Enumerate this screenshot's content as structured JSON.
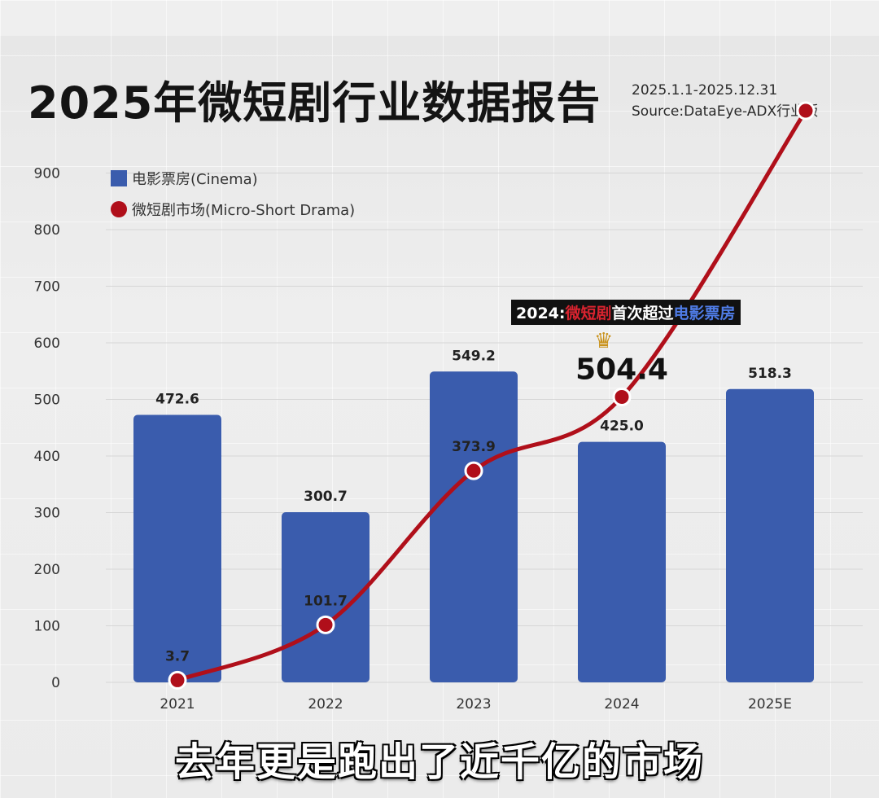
{
  "header": {
    "title": "2025年微短剧行业数据报告",
    "date_range": "2025.1.1-2025.12.31",
    "source": "Source:DataEye-ADX行业版"
  },
  "legend": {
    "cinema": "电影票房(Cinema)",
    "micro": "微短剧市场(Micro-Short Drama)"
  },
  "callout": {
    "prefix": "2024:",
    "red_part": "微短剧",
    "middle": "首次超过",
    "blue_part": "电影票房"
  },
  "crown_icon": "crown-icon",
  "subtitle": "去年更是跑出了近千亿的市场",
  "colors": {
    "bar": "#3a5cad",
    "line": "#b00f1a",
    "callout_red": "#d9232f",
    "callout_blue": "#4f7ce6"
  },
  "chart_data": {
    "type": "bar",
    "categories": [
      "2021",
      "2022",
      "2023",
      "2024",
      "2025E"
    ],
    "yticks": [
      0,
      100,
      200,
      300,
      400,
      500,
      600,
      700,
      800,
      900
    ],
    "ylim": [
      0,
      900
    ],
    "grid": true,
    "legend_position": "top-left",
    "series": [
      {
        "name": "电影票房(Cinema)",
        "type": "bar",
        "values": [
          472.6,
          300.7,
          549.2,
          425.0,
          518.3
        ],
        "labels": [
          "472.6",
          "300.7",
          "549.2",
          "425.0",
          "518.3"
        ]
      },
      {
        "name": "微短剧市场(Micro-Short Drama)",
        "type": "line",
        "values": [
          3.7,
          101.7,
          373.9,
          504.4,
          1010
        ],
        "labels": [
          "3.7",
          "101.7",
          "373.9",
          "504.4",
          ""
        ]
      }
    ]
  }
}
